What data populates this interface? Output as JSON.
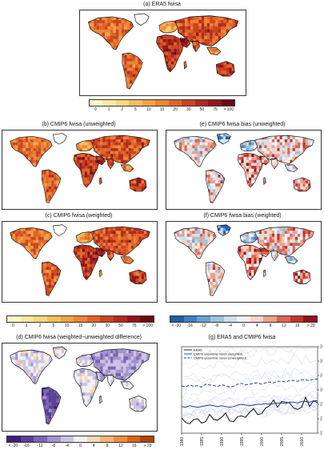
{
  "panels": {
    "a": {
      "title": "(a) ERA5 fwisa",
      "palette": "fwi"
    },
    "b": {
      "title": "(b) CMIP6 fwisa (unweighted)",
      "palette": "fwi"
    },
    "c": {
      "title": "(c) CMIP6 fwisa (weighted)",
      "palette": "fwi"
    },
    "d": {
      "title": "(d) CMIP6 fwisa (weighted−unweighted difference)",
      "palette": "diff"
    },
    "e": {
      "title": "(e) CMIP6 fwisa bias (unweighted)",
      "palette": "bias"
    },
    "f": {
      "title": "(f) CMIP6 fwisa bias (weighted)",
      "palette": "bias"
    },
    "g": {
      "title": "(g) ERA5 and CMIP6 fwisa"
    }
  },
  "colorbars": {
    "fwi": {
      "labels": [
        "0",
        "1",
        "2",
        "5",
        "10",
        "15",
        "20",
        "30",
        "50",
        "75",
        "> 100"
      ],
      "colors": [
        "#fff7c4",
        "#fde9a0",
        "#fbd67d",
        "#f8bd5c",
        "#f3a244",
        "#ec8434",
        "#df6527",
        "#cb4420",
        "#b22a1c",
        "#93161a",
        "#6c0a16"
      ]
    },
    "bias": {
      "labels": [
        "< -20",
        "-16",
        "-12",
        "-8",
        "-4",
        "0",
        "4",
        "8",
        "12",
        "16",
        "> 20"
      ],
      "colors": [
        "#1d5ea8",
        "#3f7fc0",
        "#6aa1d2",
        "#9cc4e3",
        "#cde0ef",
        "#f2f2f2",
        "#f6d4c6",
        "#ee9f88",
        "#dd6451",
        "#c4322c",
        "#96101c"
      ]
    },
    "diff": {
      "labels": [
        "< -20",
        "-16",
        "-12",
        "-8",
        "-4",
        "0",
        "4",
        "8",
        "12",
        "16",
        "> 20"
      ],
      "colors": [
        "#3b1f7c",
        "#5a3f97",
        "#7c63b2",
        "#a293cb",
        "#ccc3e2",
        "#f2f2f2",
        "#fbd6b3",
        "#f7b377",
        "#ef8c40",
        "#dc6414",
        "#b14306"
      ]
    }
  },
  "chart_data": {
    "type": "line",
    "title": "(g) ERA5 and CMIP6 fwisa",
    "x": [
      1980,
      1981,
      1982,
      1983,
      1984,
      1985,
      1986,
      1987,
      1988,
      1989,
      1990,
      1991,
      1992,
      1993,
      1994,
      1995,
      1996,
      1997,
      1998,
      1999,
      2000,
      2001,
      2002,
      2003,
      2004,
      2005,
      2006,
      2007,
      2008,
      2009,
      2010,
      2011,
      2012,
      2013,
      2014
    ],
    "xticks": [
      1980,
      1985,
      1990,
      1995,
      2000,
      2005,
      2010
    ],
    "ylim": [
      24,
      36
    ],
    "yticks": [
      24,
      26,
      28,
      30,
      32,
      34,
      36
    ],
    "series": [
      {
        "name": "ERA5",
        "color": "#111111",
        "style": "solid",
        "values": [
          26.1,
          25.5,
          25.3,
          25.9,
          26.0,
          25.4,
          25.6,
          26.6,
          25.9,
          25.8,
          26.2,
          26.8,
          25.7,
          25.6,
          26.3,
          26.4,
          26.2,
          26.9,
          27.4,
          26.6,
          26.7,
          27.5,
          27.8,
          28.6,
          27.6,
          28.4,
          28.3,
          28.2,
          27.5,
          27.3,
          27.6,
          29.0,
          27.7,
          28.5,
          28.2
        ]
      },
      {
        "name": "CMIP6 ensemble mean (weighted)",
        "color": "#22409c",
        "style": "solid",
        "values": [
          27.7,
          27.6,
          27.8,
          27.7,
          27.6,
          27.7,
          27.8,
          27.9,
          27.8,
          27.7,
          27.8,
          27.7,
          27.6,
          27.7,
          27.9,
          28.0,
          27.9,
          27.8,
          27.9,
          28.0,
          28.0,
          28.1,
          28.0,
          28.1,
          28.2,
          28.2,
          28.1,
          28.3,
          28.3,
          28.2,
          28.4,
          28.4,
          28.3,
          28.5,
          28.5
        ]
      },
      {
        "name": "CMIP6 ensemble mean (unweighted)",
        "color": "#22409c",
        "style": "dashed",
        "values": [
          30.6,
          30.4,
          30.7,
          30.5,
          30.6,
          30.4,
          30.8,
          30.7,
          30.6,
          30.5,
          30.7,
          30.6,
          30.4,
          30.5,
          30.8,
          30.9,
          30.7,
          30.8,
          30.9,
          31.0,
          30.8,
          31.0,
          31.1,
          31.0,
          31.2,
          31.2,
          31.1,
          31.3,
          31.3,
          31.2,
          31.4,
          31.4,
          31.3,
          31.5,
          31.5
        ]
      }
    ]
  }
}
